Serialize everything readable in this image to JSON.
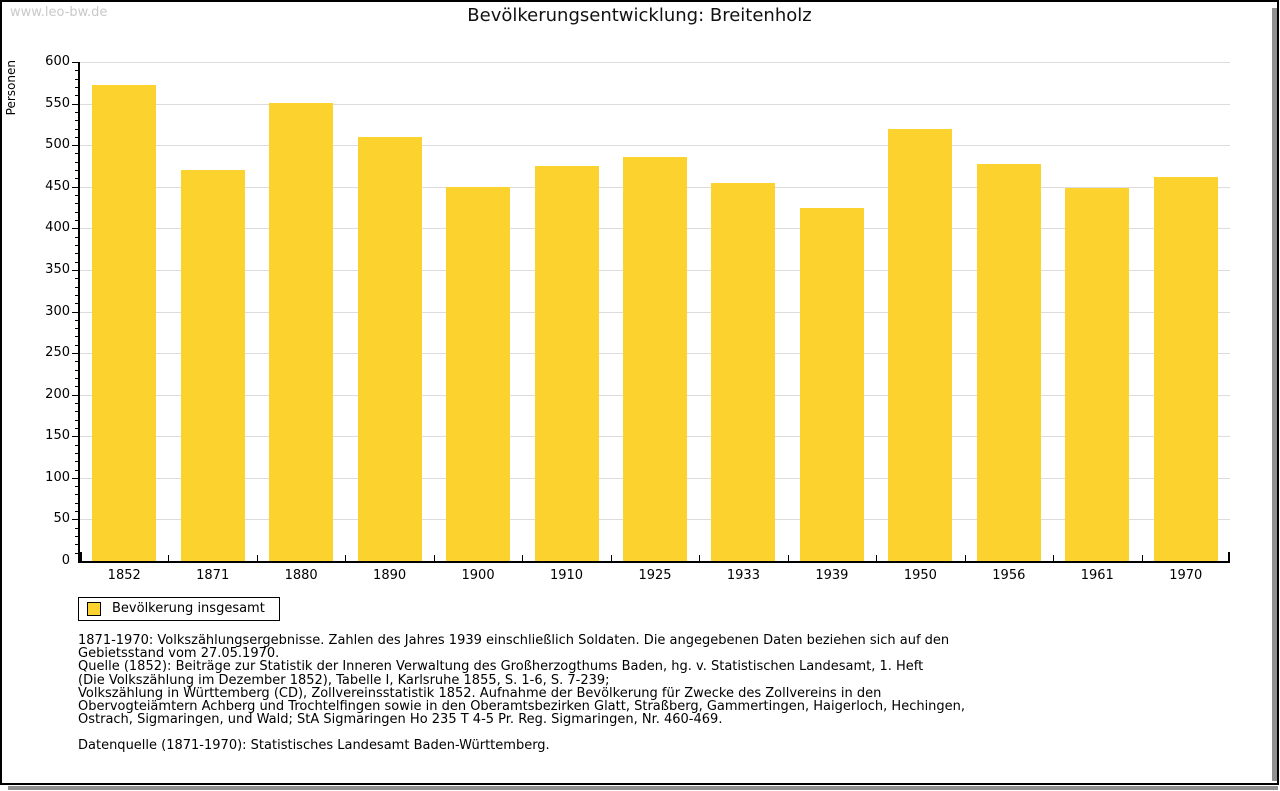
{
  "watermark": "www.leo-bw.de",
  "title": "Bevölkerungsentwicklung: Breitenholz",
  "chart_data": {
    "type": "bar",
    "title": "Bevölkerungsentwicklung: Breitenholz",
    "ylabel": "Personen",
    "xlabel": "",
    "categories": [
      "1852",
      "1871",
      "1880",
      "1890",
      "1900",
      "1910",
      "1925",
      "1933",
      "1939",
      "1950",
      "1956",
      "1961",
      "1970"
    ],
    "values": [
      572,
      470,
      551,
      510,
      450,
      475,
      486,
      454,
      425,
      519,
      477,
      448,
      462
    ],
    "ylim": [
      0,
      600
    ],
    "ytick_step": 50,
    "yminor_step": 10,
    "grid": true,
    "legend_position": "bottom-left",
    "series_name": "Bevölkerung insgesamt"
  },
  "legend": {
    "label": "Bevölkerung insgesamt",
    "swatch_color": "#fcd32e"
  },
  "footer": {
    "lines": [
      "1871-1970: Volkszählungsergebnisse. Zahlen des Jahres 1939 einschließlich Soldaten. Die angegebenen Daten beziehen sich auf den",
      "Gebietsstand vom 27.05.1970.",
      "Quelle (1852): Beiträge zur Statistik der Inneren Verwaltung des Großherzogthums Baden, hg. v. Statistischen Landesamt, 1. Heft",
      "(Die Volkszählung im Dezember 1852), Tabelle I, Karlsruhe 1855, S. 1-6, S. 7-239;",
      "Volkszählung in Württemberg (CD), Zollvereinsstatistik 1852. Aufnahme der Bevölkerung für Zwecke des Zollvereins in den",
      "Obervogteiämtern Achberg und Trochtelfingen sowie in den Oberamtsbezirken Glatt, Straßberg, Gammertingen, Haigerloch, Hechingen,",
      "Ostrach, Sigmaringen, und Wald; StA Sigmaringen Ho 235 T 4-5 Pr. Reg. Sigmaringen, Nr. 460-469."
    ],
    "datasource": "Datenquelle (1871-1970): Statistisches Landesamt Baden-Württemberg."
  },
  "colors": {
    "bar": "#fcd32e",
    "grid": "#dcdcdc",
    "axis": "#000000",
    "watermark": "#c9c9c9",
    "shadow": "#909090"
  }
}
